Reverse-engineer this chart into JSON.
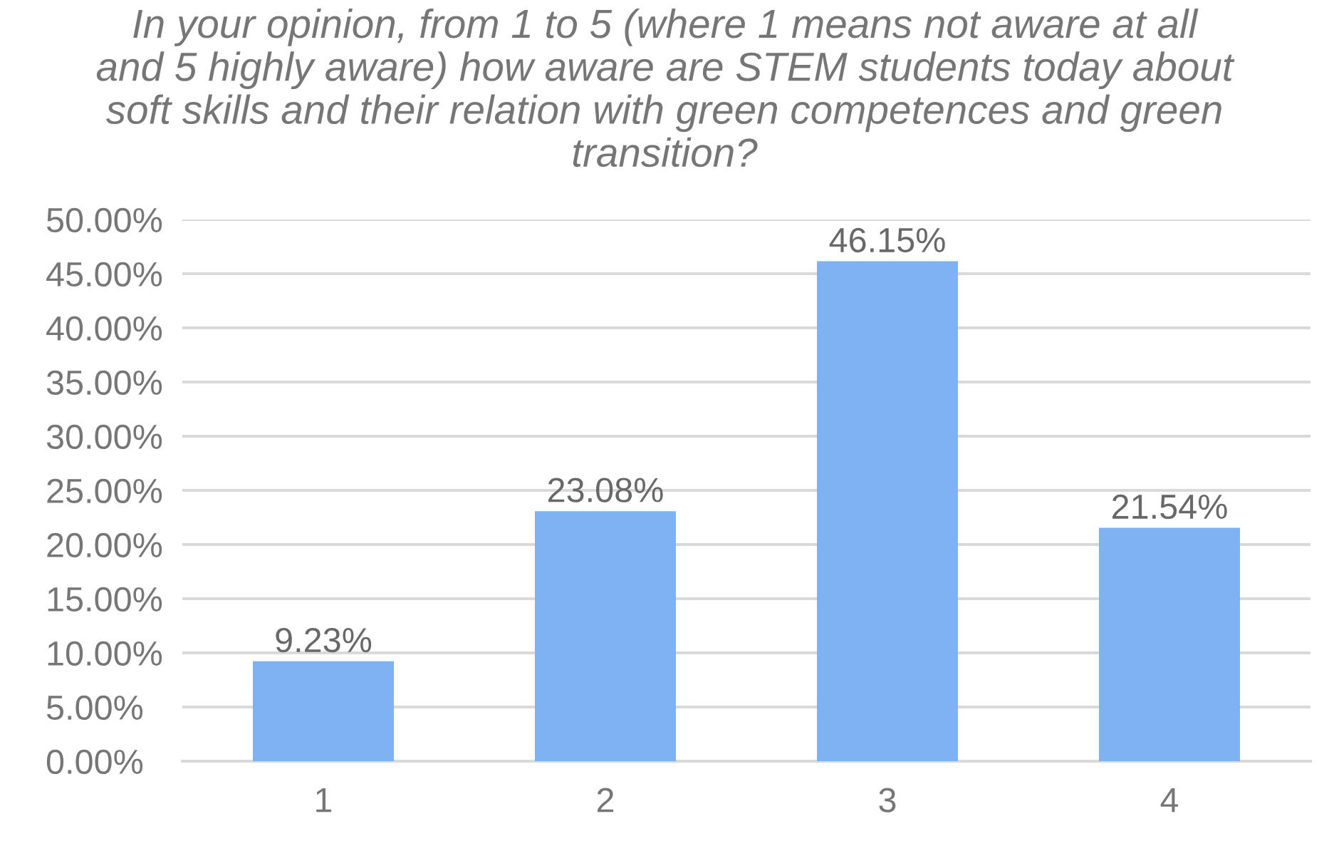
{
  "chart_data": {
    "type": "bar",
    "title": "In your opinion, from 1 to 5 (where 1 means not aware at all and 5 highly aware) how aware are STEM students today about soft skills and their relation with green competences and green transition?",
    "categories": [
      "1",
      "2",
      "3",
      "4"
    ],
    "values": [
      9.23,
      23.08,
      46.15,
      21.54
    ],
    "value_labels": [
      "9.23%",
      "23.08%",
      "46.15%",
      "21.54%"
    ],
    "color": "#7fb2f2",
    "ylim": [
      0,
      50
    ],
    "yticks": [
      {
        "value": 0,
        "label": "0.00%"
      },
      {
        "value": 5,
        "label": "5.00%"
      },
      {
        "value": 10,
        "label": "10.00%"
      },
      {
        "value": 15,
        "label": "15.00%"
      },
      {
        "value": 20,
        "label": "20.00%"
      },
      {
        "value": 25,
        "label": "25.00%"
      },
      {
        "value": 30,
        "label": "30.00%"
      },
      {
        "value": 35,
        "label": "35.00%"
      },
      {
        "value": 40,
        "label": "40.00%"
      },
      {
        "value": 45,
        "label": "45.00%"
      },
      {
        "value": 50,
        "label": "50.00%"
      }
    ],
    "grid": "y"
  }
}
